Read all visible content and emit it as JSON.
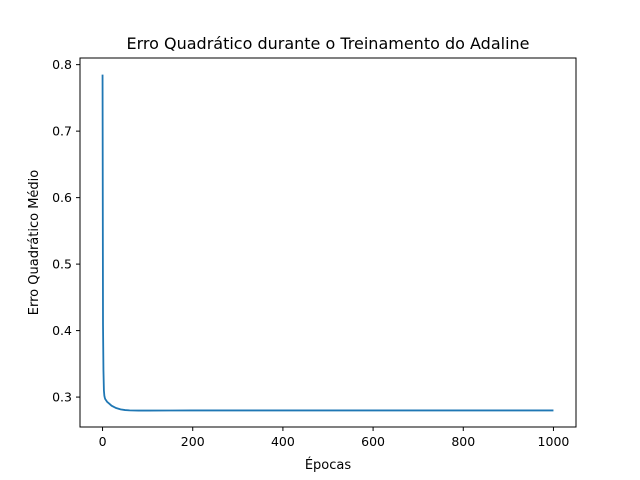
{
  "chart_data": {
    "type": "line",
    "title": "Erro Quadrático durante o Treinamento do Adaline",
    "xlabel": "Épocas",
    "ylabel": "Erro Quadrático Médio",
    "xlim": [
      -50,
      1050
    ],
    "ylim": [
      0.255,
      0.81
    ],
    "x_ticks": [
      0,
      200,
      400,
      600,
      800,
      1000
    ],
    "x_tick_labels": [
      "0",
      "200",
      "400",
      "600",
      "800",
      "1000"
    ],
    "y_ticks": [
      0.3,
      0.4,
      0.5,
      0.6,
      0.7,
      0.8
    ],
    "y_tick_labels": [
      "0.3",
      "0.4",
      "0.5",
      "0.6",
      "0.7",
      "0.8"
    ],
    "grid": false,
    "legend": "none",
    "series": [
      {
        "color": "#1f77b4",
        "x": [
          0,
          1,
          2,
          3,
          4,
          5,
          6,
          8,
          10,
          15,
          20,
          30,
          40,
          50,
          60,
          80,
          100,
          150,
          200,
          300,
          400,
          500,
          600,
          700,
          800,
          900,
          1000
        ],
        "y": [
          0.785,
          0.41,
          0.34,
          0.31,
          0.302,
          0.299,
          0.297,
          0.295,
          0.293,
          0.29,
          0.287,
          0.2835,
          0.2815,
          0.2805,
          0.28,
          0.2797,
          0.2797,
          0.2798,
          0.2799,
          0.2799,
          0.2799,
          0.2799,
          0.2799,
          0.2799,
          0.2799,
          0.2799,
          0.2799
        ]
      }
    ]
  }
}
